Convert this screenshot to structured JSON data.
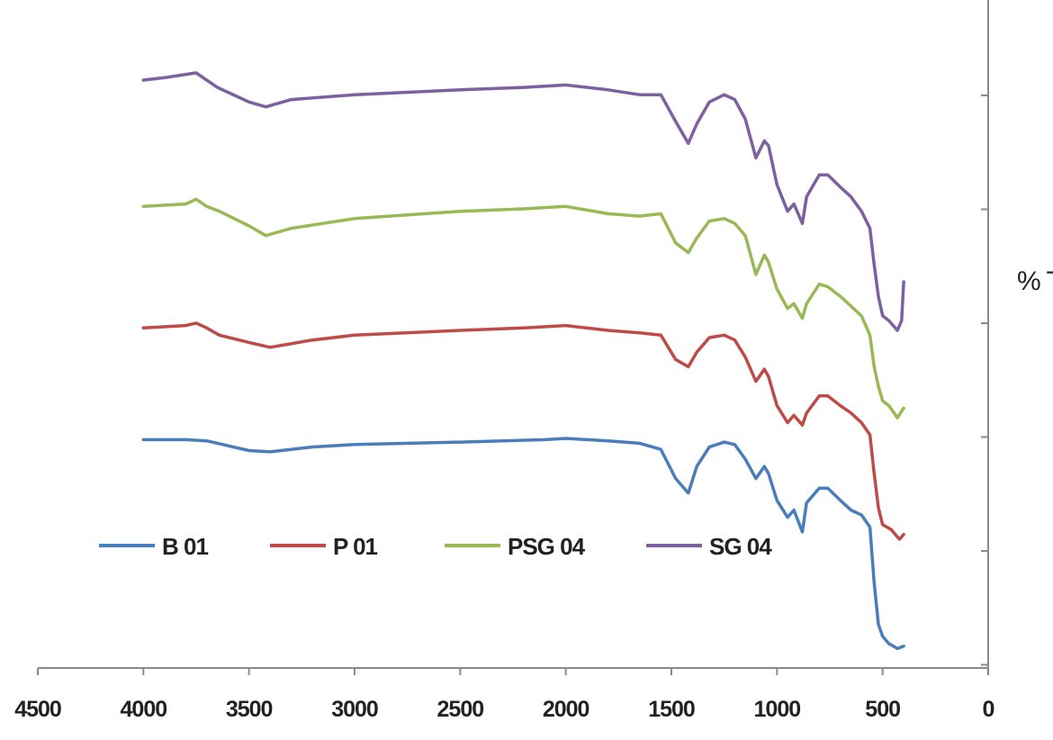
{
  "chart_data": {
    "type": "line",
    "title": "",
    "xlabel": "",
    "ylabel": "% T",
    "xlim": [
      4500,
      0
    ],
    "x_reversed": true,
    "x_ticks": [
      4500,
      4000,
      3500,
      3000,
      2500,
      2000,
      1500,
      1000,
      500,
      0
    ],
    "y_axis_position": "right",
    "y_tick_count": 6,
    "y_tick_labels_visible": false,
    "grid": false,
    "legend_position": "bottom-left",
    "series": [
      {
        "name": "B 01",
        "color": "#4a7ebb",
        "points": [
          [
            4000,
            9.4
          ],
          [
            3800,
            9.4
          ],
          [
            3700,
            9.35
          ],
          [
            3600,
            9.15
          ],
          [
            3500,
            8.95
          ],
          [
            3400,
            8.9
          ],
          [
            3200,
            9.1
          ],
          [
            3000,
            9.2
          ],
          [
            2500,
            9.3
          ],
          [
            2100,
            9.4
          ],
          [
            2000,
            9.45
          ],
          [
            1800,
            9.35
          ],
          [
            1650,
            9.25
          ],
          [
            1550,
            9.0
          ],
          [
            1480,
            7.8
          ],
          [
            1420,
            7.2
          ],
          [
            1380,
            8.3
          ],
          [
            1320,
            9.1
          ],
          [
            1250,
            9.3
          ],
          [
            1200,
            9.2
          ],
          [
            1150,
            8.6
          ],
          [
            1100,
            7.8
          ],
          [
            1060,
            8.3
          ],
          [
            1040,
            8.0
          ],
          [
            1000,
            6.9
          ],
          [
            950,
            6.2
          ],
          [
            920,
            6.5
          ],
          [
            880,
            5.6
          ],
          [
            860,
            6.8
          ],
          [
            800,
            7.4
          ],
          [
            760,
            7.4
          ],
          [
            700,
            6.9
          ],
          [
            650,
            6.5
          ],
          [
            600,
            6.3
          ],
          [
            560,
            5.8
          ],
          [
            540,
            3.5
          ],
          [
            520,
            1.8
          ],
          [
            500,
            1.3
          ],
          [
            470,
            1.0
          ],
          [
            430,
            0.8
          ],
          [
            400,
            0.9
          ]
        ]
      },
      {
        "name": "P 01",
        "color": "#be4b48",
        "points": [
          [
            4000,
            14.0
          ],
          [
            3800,
            14.1
          ],
          [
            3750,
            14.2
          ],
          [
            3700,
            14.0
          ],
          [
            3640,
            13.7
          ],
          [
            3500,
            13.4
          ],
          [
            3400,
            13.2
          ],
          [
            3200,
            13.5
          ],
          [
            3000,
            13.7
          ],
          [
            2500,
            13.9
          ],
          [
            2200,
            14.0
          ],
          [
            2000,
            14.1
          ],
          [
            1800,
            13.9
          ],
          [
            1650,
            13.8
          ],
          [
            1550,
            13.7
          ],
          [
            1480,
            12.7
          ],
          [
            1420,
            12.4
          ],
          [
            1380,
            13.0
          ],
          [
            1320,
            13.6
          ],
          [
            1250,
            13.7
          ],
          [
            1200,
            13.5
          ],
          [
            1150,
            12.8
          ],
          [
            1100,
            11.8
          ],
          [
            1060,
            12.3
          ],
          [
            1040,
            12.0
          ],
          [
            1000,
            10.8
          ],
          [
            950,
            10.1
          ],
          [
            920,
            10.4
          ],
          [
            880,
            10.0
          ],
          [
            860,
            10.5
          ],
          [
            800,
            11.2
          ],
          [
            760,
            11.2
          ],
          [
            700,
            10.8
          ],
          [
            650,
            10.5
          ],
          [
            600,
            10.1
          ],
          [
            560,
            9.6
          ],
          [
            540,
            8.0
          ],
          [
            520,
            6.6
          ],
          [
            500,
            5.9
          ],
          [
            460,
            5.7
          ],
          [
            420,
            5.3
          ],
          [
            400,
            5.5
          ]
        ]
      },
      {
        "name": "PSG 04",
        "color": "#98b954",
        "points": [
          [
            4000,
            19.0
          ],
          [
            3800,
            19.1
          ],
          [
            3750,
            19.3
          ],
          [
            3700,
            19.0
          ],
          [
            3640,
            18.8
          ],
          [
            3500,
            18.2
          ],
          [
            3420,
            17.8
          ],
          [
            3300,
            18.1
          ],
          [
            3000,
            18.5
          ],
          [
            2500,
            18.8
          ],
          [
            2200,
            18.9
          ],
          [
            2000,
            19.0
          ],
          [
            1800,
            18.7
          ],
          [
            1650,
            18.6
          ],
          [
            1550,
            18.7
          ],
          [
            1480,
            17.5
          ],
          [
            1420,
            17.1
          ],
          [
            1380,
            17.7
          ],
          [
            1320,
            18.4
          ],
          [
            1250,
            18.5
          ],
          [
            1200,
            18.3
          ],
          [
            1150,
            17.8
          ],
          [
            1100,
            16.2
          ],
          [
            1060,
            17.0
          ],
          [
            1040,
            16.7
          ],
          [
            1000,
            15.6
          ],
          [
            950,
            14.8
          ],
          [
            920,
            15.0
          ],
          [
            880,
            14.4
          ],
          [
            860,
            15.0
          ],
          [
            800,
            15.8
          ],
          [
            760,
            15.7
          ],
          [
            700,
            15.3
          ],
          [
            650,
            14.9
          ],
          [
            600,
            14.5
          ],
          [
            560,
            13.7
          ],
          [
            540,
            12.4
          ],
          [
            520,
            11.6
          ],
          [
            500,
            11.0
          ],
          [
            470,
            10.8
          ],
          [
            430,
            10.3
          ],
          [
            400,
            10.7
          ]
        ]
      },
      {
        "name": "SG 04",
        "color": "#7d60a0",
        "points": [
          [
            4000,
            24.2
          ],
          [
            3900,
            24.3
          ],
          [
            3750,
            24.5
          ],
          [
            3700,
            24.2
          ],
          [
            3650,
            23.9
          ],
          [
            3500,
            23.3
          ],
          [
            3420,
            23.1
          ],
          [
            3300,
            23.4
          ],
          [
            3000,
            23.6
          ],
          [
            2500,
            23.8
          ],
          [
            2200,
            23.9
          ],
          [
            2000,
            24.0
          ],
          [
            1800,
            23.8
          ],
          [
            1650,
            23.6
          ],
          [
            1550,
            23.6
          ],
          [
            1480,
            22.5
          ],
          [
            1420,
            21.6
          ],
          [
            1380,
            22.4
          ],
          [
            1320,
            23.3
          ],
          [
            1250,
            23.6
          ],
          [
            1200,
            23.4
          ],
          [
            1150,
            22.6
          ],
          [
            1100,
            21.0
          ],
          [
            1060,
            21.7
          ],
          [
            1040,
            21.5
          ],
          [
            1000,
            19.9
          ],
          [
            950,
            18.8
          ],
          [
            920,
            19.1
          ],
          [
            880,
            18.3
          ],
          [
            860,
            19.4
          ],
          [
            800,
            20.3
          ],
          [
            760,
            20.3
          ],
          [
            700,
            19.8
          ],
          [
            650,
            19.4
          ],
          [
            600,
            18.8
          ],
          [
            560,
            18.1
          ],
          [
            540,
            16.6
          ],
          [
            520,
            15.3
          ],
          [
            500,
            14.5
          ],
          [
            470,
            14.3
          ],
          [
            430,
            13.9
          ],
          [
            410,
            14.3
          ],
          [
            400,
            15.9
          ]
        ]
      }
    ]
  }
}
